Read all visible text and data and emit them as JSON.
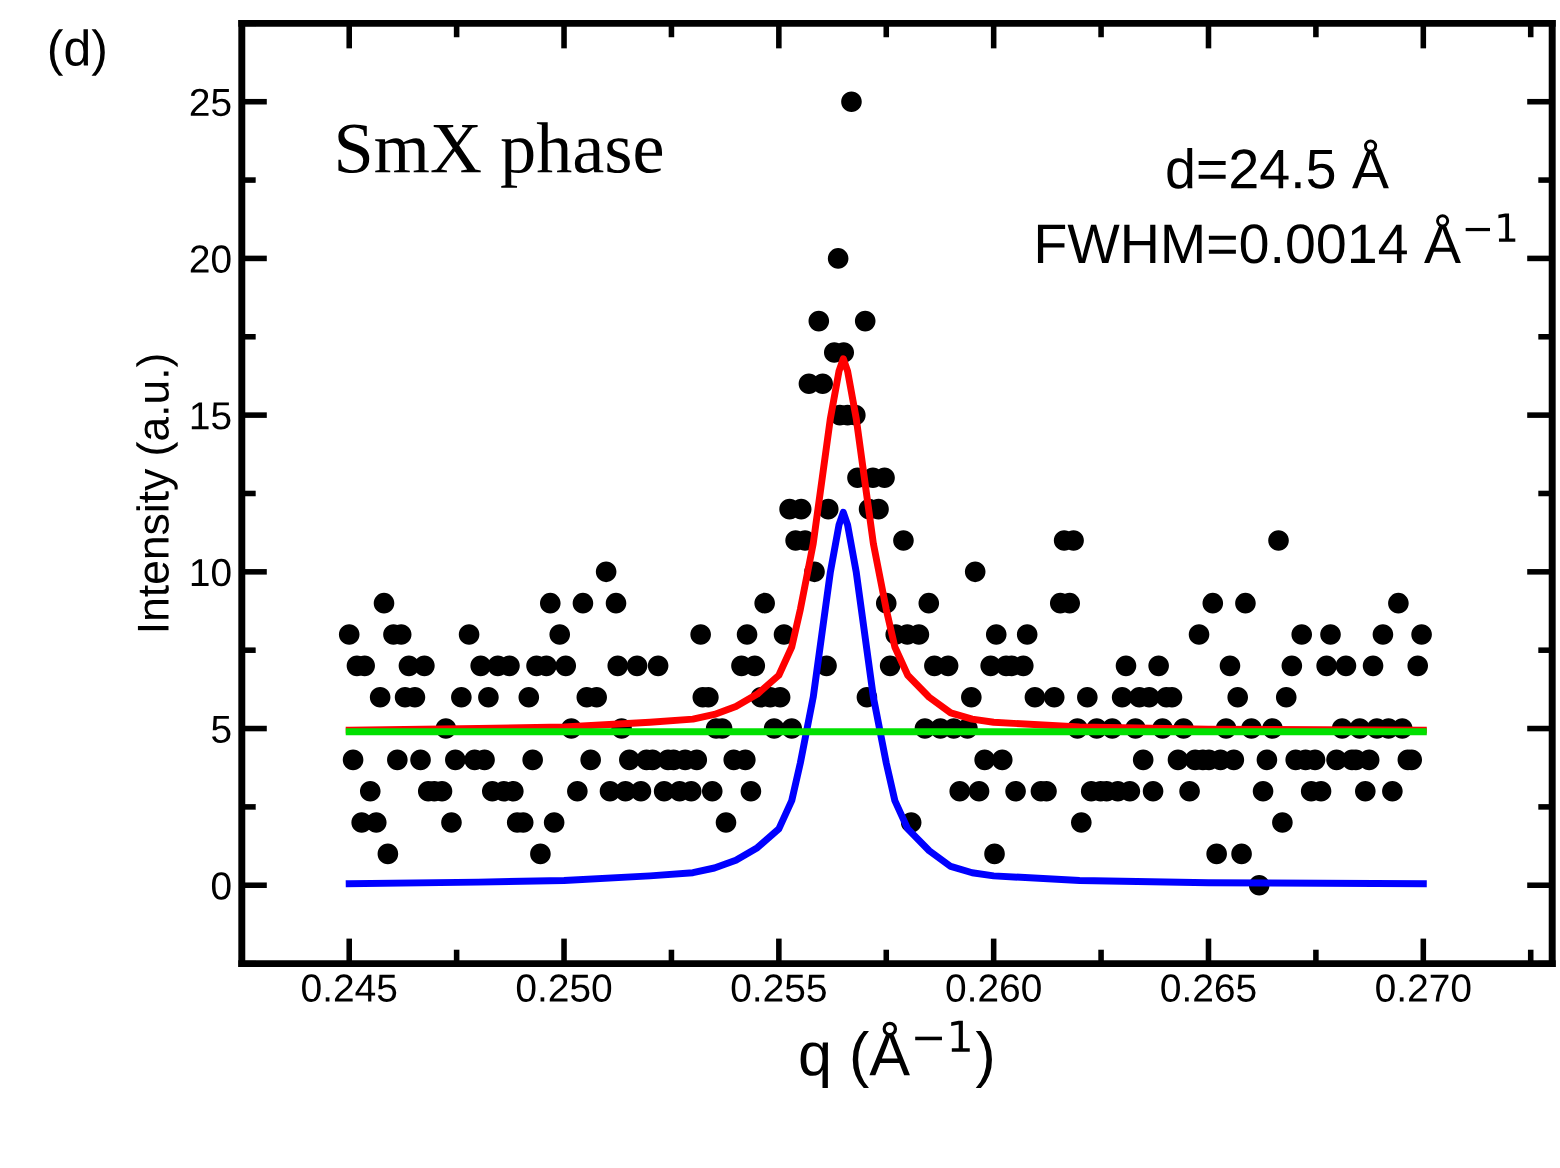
{
  "chart_data": {
    "type": "scatter",
    "xlabel": "q (Å$^{−1}$)",
    "ylabel": "Intensity (a.u.)",
    "xlim": [
      0.2425,
      0.273
    ],
    "ylim": [
      -2.5,
      27.5
    ],
    "xticks": [
      {
        "value": 0.245,
        "label": "0.245"
      },
      {
        "value": 0.25,
        "label": "0.250"
      },
      {
        "value": 0.255,
        "label": "0.255"
      },
      {
        "value": 0.26,
        "label": "0.260"
      },
      {
        "value": 0.265,
        "label": "0.265"
      },
      {
        "value": 0.27,
        "label": "0.270"
      }
    ],
    "yticks": [
      0,
      5,
      10,
      15,
      20,
      25
    ],
    "grid": false,
    "annotations": [
      "(d)",
      "SmX phase",
      "d=24.5 Å",
      "FWHM=0.0014 Å$^{−1}$"
    ],
    "series": [
      {
        "color": "#000000",
        "marker": "circle",
        "x": [
          0.245,
          0.24509,
          0.24518,
          0.24529,
          0.24536,
          0.24549,
          0.24563,
          0.24572,
          0.24581,
          0.2459,
          0.24603,
          0.24612,
          0.24621,
          0.2463,
          0.24639,
          0.24653,
          0.24666,
          0.24675,
          0.24684,
          0.24698,
          0.24716,
          0.24725,
          0.24738,
          0.24747,
          0.24761,
          0.24779,
          0.24792,
          0.24806,
          0.24815,
          0.24824,
          0.24833,
          0.24846,
          0.2486,
          0.24873,
          0.24882,
          0.24891,
          0.24905,
          0.24918,
          0.24927,
          0.24936,
          0.24945,
          0.24959,
          0.24968,
          0.24977,
          0.2499,
          0.25004,
          0.25017,
          0.25031,
          0.25044,
          0.25053,
          0.25062,
          0.25076,
          0.25098,
          0.25107,
          0.25121,
          0.25125,
          0.25134,
          0.25143,
          0.25152,
          0.2517,
          0.25179,
          0.25192,
          0.25206,
          0.25219,
          0.25233,
          0.25242,
          0.25255,
          0.25269,
          0.25282,
          0.25296,
          0.25309,
          0.25318,
          0.25323,
          0.25336,
          0.25345,
          0.25354,
          0.25368,
          0.25377,
          0.25395,
          0.25413,
          0.25422,
          0.25426,
          0.25435,
          0.25444,
          0.25458,
          0.25467,
          0.2548,
          0.25489,
          0.25503,
          0.25512,
          0.25525,
          0.2553,
          0.25539,
          0.25552,
          0.25561,
          0.2557,
          0.25583,
          0.25593,
          0.25602,
          0.25611,
          0.25615,
          0.25629,
          0.25638,
          0.25642,
          0.25651,
          0.2566,
          0.25669,
          0.25678,
          0.25683,
          0.25701,
          0.25705,
          0.2571,
          0.25719,
          0.25732,
          0.25746,
          0.2575,
          0.25759,
          0.25772,
          0.2579,
          0.25799,
          0.25808,
          0.25826,
          0.2584,
          0.25849,
          0.25862,
          0.25876,
          0.25894,
          0.25907,
          0.25921,
          0.25939,
          0.25948,
          0.25957,
          0.25966,
          0.25979,
          0.25993,
          0.26002,
          0.26006,
          0.2602,
          0.26029,
          0.26042,
          0.26051,
          0.26069,
          0.26078,
          0.26096,
          0.2611,
          0.26123,
          0.26141,
          0.26155,
          0.26164,
          0.26177,
          0.26186,
          0.26195,
          0.26204,
          0.26218,
          0.26227,
          0.2624,
          0.26249,
          0.26263,
          0.26276,
          0.26289,
          0.26299,
          0.26308,
          0.26317,
          0.2633,
          0.26339,
          0.26348,
          0.26362,
          0.26371,
          0.26384,
          0.26393,
          0.26402,
          0.26415,
          0.26429,
          0.26442,
          0.26456,
          0.26469,
          0.26478,
          0.26487,
          0.26501,
          0.2651,
          0.26519,
          0.26528,
          0.26541,
          0.2655,
          0.26559,
          0.26568,
          0.26577,
          0.26586,
          0.266,
          0.26618,
          0.26627,
          0.26636,
          0.26649,
          0.26663,
          0.26672,
          0.26681,
          0.26694,
          0.26703,
          0.26717,
          0.26726,
          0.26739,
          0.26748,
          0.26762,
          0.26775,
          0.26784,
          0.26798,
          0.26811,
          0.2682,
          0.26834,
          0.26843,
          0.26852,
          0.26865,
          0.26874,
          0.26883,
          0.26892,
          0.26906,
          0.26919,
          0.26928,
          0.26942,
          0.26951,
          0.26964,
          0.26973,
          0.26987,
          0.26996
        ],
        "values": [
          8,
          4,
          7,
          2,
          7,
          3,
          2,
          6,
          9,
          1,
          8,
          4,
          8,
          6,
          7,
          6,
          4,
          7,
          3,
          3,
          3,
          5,
          2,
          4,
          6,
          8,
          4,
          7,
          4,
          6,
          3,
          7,
          3,
          7,
          3,
          2,
          2,
          6,
          4,
          7,
          1,
          7,
          9,
          2,
          8,
          7,
          5,
          3,
          9,
          6,
          4,
          6,
          10,
          3,
          9,
          7,
          5,
          3,
          4,
          7,
          3,
          4,
          4,
          7,
          3,
          4,
          4,
          3,
          4,
          3,
          4,
          8,
          6,
          6,
          3,
          5,
          5,
          2,
          4,
          7,
          4,
          8,
          3,
          7,
          6,
          9,
          6,
          5,
          6,
          8,
          12,
          5,
          11,
          12,
          11,
          16,
          10,
          18,
          16,
          7,
          12,
          17,
          20,
          15,
          17,
          15,
          25,
          15,
          13,
          18,
          6,
          12,
          13,
          12,
          13,
          9,
          7,
          8,
          11,
          8,
          2,
          8,
          5,
          9,
          7,
          5,
          7,
          5,
          3,
          5,
          6,
          10,
          3,
          4,
          7,
          1,
          8,
          4,
          7,
          7,
          3,
          7,
          8,
          6,
          3,
          3,
          6,
          9,
          11,
          9,
          11,
          5,
          2,
          6,
          3,
          5,
          3,
          3,
          5,
          3,
          6,
          7,
          3,
          5,
          6,
          4,
          6,
          3,
          7,
          5,
          6,
          6,
          4,
          5,
          3,
          4,
          8,
          4,
          4,
          9,
          1,
          4,
          5,
          7,
          4,
          6,
          1,
          9,
          5,
          0,
          3,
          4,
          5,
          11,
          2,
          6,
          7,
          4,
          8,
          4,
          3,
          4,
          3,
          7,
          8,
          4,
          5,
          7,
          4,
          4,
          5,
          3,
          4,
          7,
          5,
          8,
          5,
          3,
          9,
          5,
          4,
          4,
          7,
          8
        ]
      },
      {
        "type": "line",
        "color": "#ff0000",
        "marker": "none",
        "line_style": "solid",
        "x": [
          0.245,
          0.248,
          0.25,
          0.252,
          0.253,
          0.2535,
          0.254,
          0.2545,
          0.255,
          0.2553,
          0.2555,
          0.2558,
          0.256,
          0.2562,
          0.2564,
          0.2565,
          0.2566,
          0.2568,
          0.257,
          0.2572,
          0.2575,
          0.2577,
          0.258,
          0.2585,
          0.259,
          0.2595,
          0.26,
          0.262,
          0.265,
          0.27
        ],
        "values": [
          4.95,
          5.0,
          5.05,
          5.2,
          5.3,
          5.45,
          5.7,
          6.1,
          6.7,
          7.6,
          8.8,
          10.9,
          12.9,
          14.9,
          16.4,
          16.8,
          16.4,
          14.9,
          12.9,
          10.9,
          8.8,
          7.6,
          6.7,
          6.0,
          5.5,
          5.3,
          5.2,
          5.05,
          4.98,
          4.95
        ]
      },
      {
        "type": "line",
        "color": "#0000ff",
        "marker": "none",
        "line_style": "solid",
        "x": [
          0.245,
          0.248,
          0.25,
          0.252,
          0.253,
          0.2535,
          0.254,
          0.2545,
          0.255,
          0.2553,
          0.2555,
          0.2558,
          0.256,
          0.2562,
          0.2564,
          0.2565,
          0.2566,
          0.2568,
          0.257,
          0.2572,
          0.2575,
          0.2577,
          0.258,
          0.2585,
          0.259,
          0.2595,
          0.26,
          0.262,
          0.265,
          0.27
        ],
        "values": [
          0.05,
          0.1,
          0.15,
          0.3,
          0.4,
          0.55,
          0.8,
          1.2,
          1.8,
          2.7,
          3.9,
          6.0,
          8.0,
          10.0,
          11.5,
          11.9,
          11.5,
          10.0,
          8.0,
          6.0,
          3.9,
          2.7,
          1.8,
          1.1,
          0.6,
          0.4,
          0.3,
          0.15,
          0.08,
          0.05
        ]
      },
      {
        "type": "line",
        "color": "#00e000",
        "marker": "none",
        "line_style": "solid",
        "x": [
          0.245,
          0.27
        ],
        "values": [
          4.9,
          4.9
        ]
      }
    ]
  }
}
